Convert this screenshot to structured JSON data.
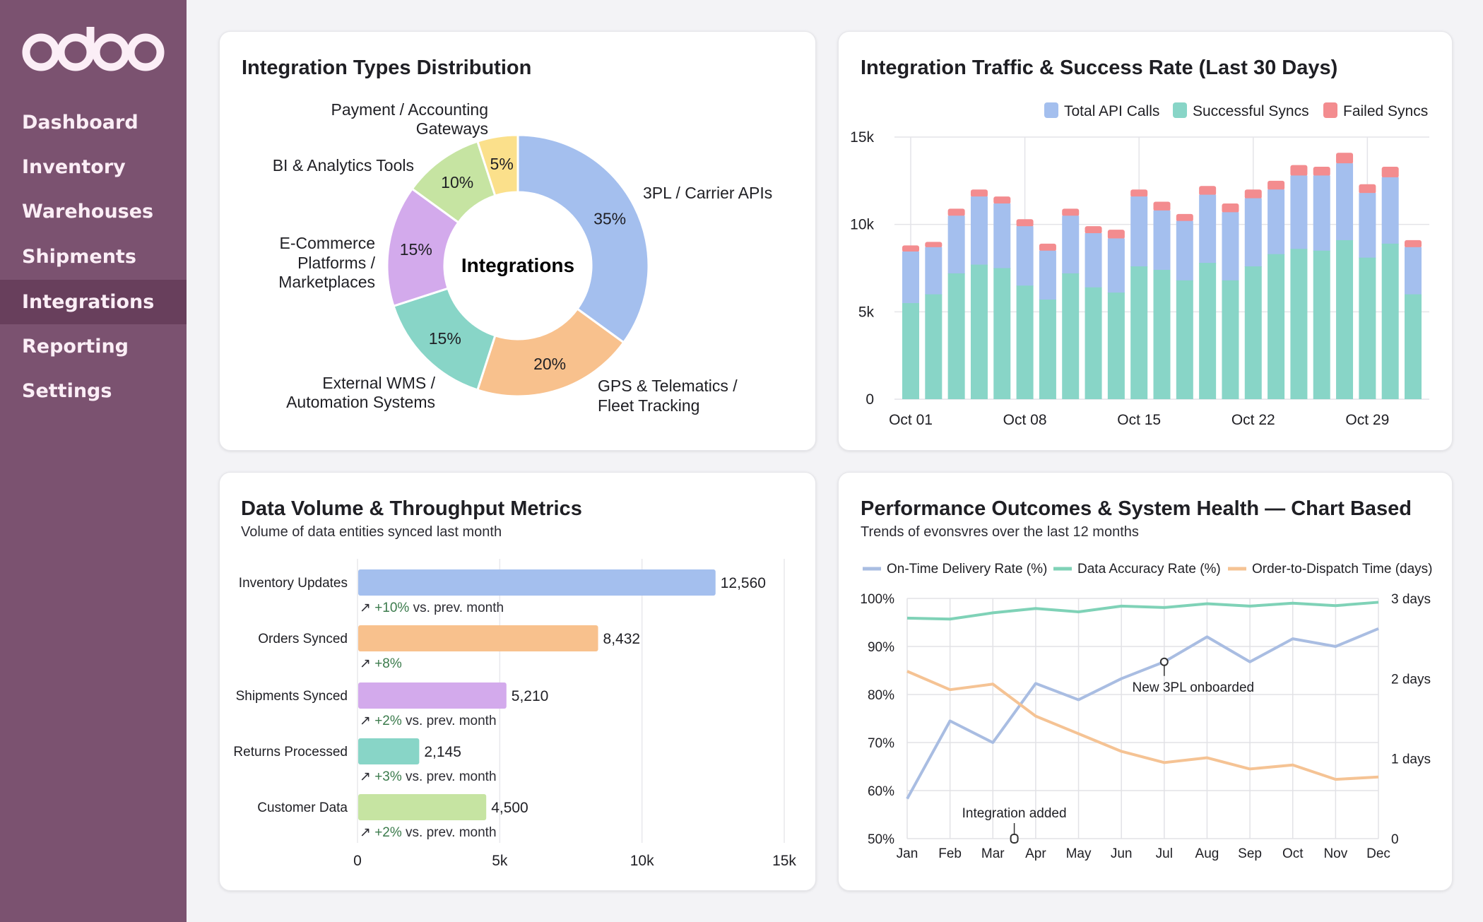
{
  "sidebar": {
    "logo_text": "odoo",
    "items": [
      {
        "label": "Dashboard",
        "active": false
      },
      {
        "label": "Inventory",
        "active": false
      },
      {
        "label": "Warehouses",
        "active": false
      },
      {
        "label": "Shipments",
        "active": false
      },
      {
        "label": "Integrations",
        "active": true
      },
      {
        "label": "Reporting",
        "active": false
      },
      {
        "label": "Settings",
        "active": false
      }
    ]
  },
  "colors": {
    "sidebar": "#7b5270",
    "sidebar_active": "#683f5c",
    "blue": "#a4bfee",
    "teal": "#88d5c7",
    "red": "#f38c8f",
    "orange": "#f8c18d",
    "purple": "#d3aaec",
    "green": "#c6e4a2",
    "yellow": "#fbe08b",
    "line_blue": "#a9bde2",
    "line_green": "#7fd2b7",
    "line_orange": "#f5c394",
    "delta_green": "#3b7b4c"
  },
  "chart_data": [
    {
      "type": "pie",
      "title": "Integration Types Distribution",
      "center_label": "Integrations",
      "donut": true,
      "slices": [
        {
          "label": "3PL / Carrier APIs",
          "value": 35,
          "value_label": "35%",
          "color": "#a4bfee"
        },
        {
          "label": "GPS & Telematics / Fleet Tracking",
          "value": 20,
          "value_label": "20%",
          "color": "#f8c18d"
        },
        {
          "label": "External WMS / Automation Systems",
          "value": 15,
          "value_label": "15%",
          "color": "#88d5c7"
        },
        {
          "label": "E-Commerce Platforms / Marketplaces",
          "value": 15,
          "value_label": "15%",
          "color": "#d3aaec"
        },
        {
          "label": "BI & Analytics Tools",
          "value": 10,
          "value_label": "10%",
          "color": "#c6e4a2"
        },
        {
          "label": "Payment / Accounting Gateways",
          "value": 5,
          "value_label": "5%",
          "color": "#fbe08b"
        }
      ]
    },
    {
      "type": "bar",
      "stacked": true,
      "title": "Integration Traffic & Success Rate (Last 30 Days)",
      "legend": [
        "Total API Calls",
        "Successful Syncs",
        "Failed Syncs"
      ],
      "legend_position": "top-right",
      "x_tick_labels": [
        "Oct 01",
        "Oct 08",
        "Oct 15",
        "Oct 22",
        "Oct 29"
      ],
      "x_tick_bar_index": [
        0,
        5,
        10,
        15,
        20
      ],
      "y_ticks": [
        "0",
        "5k",
        "10k",
        "15k"
      ],
      "ylim": [
        0,
        15000
      ],
      "grid": true,
      "successful_syncs": [
        5500,
        6000,
        7200,
        7700,
        7500,
        6500,
        5700,
        7200,
        6400,
        6100,
        7600,
        7400,
        6800,
        7800,
        6800,
        7600,
        8300,
        8600,
        8500,
        9100,
        8100,
        8900,
        6000
      ],
      "total_api_calls": [
        8450,
        8700,
        10500,
        11600,
        11200,
        9900,
        8500,
        10500,
        9500,
        9200,
        11600,
        10800,
        10200,
        11700,
        10700,
        11500,
        12000,
        12800,
        12800,
        13500,
        11800,
        12700,
        8700
      ],
      "failed_syncs": [
        350,
        300,
        400,
        400,
        400,
        400,
        400,
        400,
        400,
        500,
        400,
        500,
        400,
        500,
        500,
        500,
        500,
        600,
        500,
        600,
        500,
        600,
        400
      ]
    },
    {
      "type": "bar",
      "orientation": "horizontal",
      "title": "Data Volume & Throughput Metrics",
      "subtitle": "Volume of data entities synced last month",
      "x_ticks": [
        "0",
        "5k",
        "10k",
        "15k"
      ],
      "xlim": [
        0,
        15000
      ],
      "grid": true,
      "bars": [
        {
          "label": "Inventory Updates",
          "value": 12560,
          "value_label": "12,560",
          "delta": "+10%",
          "delta_suffix": " vs. prev. month",
          "color": "#a4bfee"
        },
        {
          "label": "Orders Synced",
          "value": 8432,
          "value_label": "8,432",
          "delta": "+8%",
          "delta_suffix": "",
          "color": "#f8c18d"
        },
        {
          "label": "Shipments Synced",
          "value": 5210,
          "value_label": "5,210",
          "delta": "+2%",
          "delta_suffix": " vs. prev. month",
          "color": "#d3aaec"
        },
        {
          "label": "Returns Processed",
          "value": 2145,
          "value_label": "2,145",
          "delta": "+3%",
          "delta_suffix": " vs. prev. month",
          "color": "#88d5c7"
        },
        {
          "label": "Customer Data",
          "value": 4500,
          "value_label": "4,500",
          "delta": "+2%",
          "delta_suffix": " vs. prev. month",
          "color": "#c6e4a2"
        }
      ],
      "delta_icon": "↗"
    },
    {
      "type": "line",
      "title": "Performance Outcomes & System Health — Chart Based",
      "subtitle": "Trends of evonsvres over the last 12 months",
      "categories": [
        "Jan",
        "Feb",
        "Mar",
        "Apr",
        "May",
        "Jun",
        "Jul",
        "Aug",
        "Sep",
        "Oct",
        "Nov",
        "Dec"
      ],
      "y_left_ticks": [
        "50%",
        "60%",
        "70%",
        "80%",
        "90%",
        "100%"
      ],
      "y_left_range": [
        50,
        100
      ],
      "y_right_ticks": [
        "0",
        "1 days",
        "2 days",
        "3 days"
      ],
      "y_right_range": [
        0,
        3
      ],
      "grid": true,
      "legend_position": "top",
      "series": [
        {
          "name": "On-Time Delivery Rate (%)",
          "axis": "left",
          "color": "#a9bde2",
          "values": [
            58.3,
            74.5,
            70,
            82.3,
            78.9,
            83.3,
            86.8,
            92,
            86.8,
            91.6,
            90,
            93.7
          ]
        },
        {
          "name": "Data Accuracy Rate (%)",
          "axis": "left",
          "color": "#7fd2b7",
          "values": [
            95.9,
            95.7,
            97,
            97.9,
            97.2,
            98.4,
            98.1,
            98.9,
            98.4,
            99,
            98.5,
            99.2
          ]
        },
        {
          "name": "Order-to-Dispatch Time (days)",
          "axis": "right",
          "color": "#f5c394",
          "values": [
            2.09,
            1.86,
            1.93,
            1.53,
            1.31,
            1.09,
            0.95,
            1.01,
            0.87,
            0.92,
            0.74,
            0.77
          ]
        }
      ],
      "annotations": [
        {
          "text": "New 3PL onboarded",
          "month": "Jul"
        },
        {
          "text": "Integration added",
          "month": "Mar–Apr"
        }
      ]
    }
  ]
}
